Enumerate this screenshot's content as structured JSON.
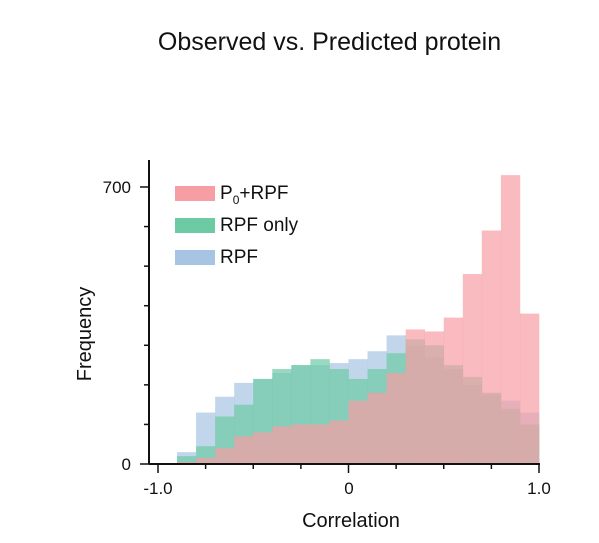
{
  "chart_data": {
    "type": "bar",
    "title": "Observed vs. Predicted protein",
    "xlabel": "Correlation",
    "ylabel": "Frequency",
    "xlim": [
      -1.0,
      1.0
    ],
    "ylim": [
      0,
      700
    ],
    "x_ticks": [
      "-1.0",
      "0",
      "1.0"
    ],
    "y_ticks": [
      "0",
      "700"
    ],
    "bin_width": 0.1,
    "bin_starts": [
      -0.9,
      -0.8,
      -0.7,
      -0.6,
      -0.5,
      -0.4,
      -0.3,
      -0.2,
      -0.1,
      0.0,
      0.1,
      0.2,
      0.3,
      0.4,
      0.5,
      0.6,
      0.7,
      0.8,
      0.9
    ],
    "legend_position": "top-left",
    "series": [
      {
        "name": "RPF",
        "color": "#a7c4e2",
        "values": [
          30,
          130,
          170,
          205,
          215,
          230,
          250,
          250,
          255,
          265,
          285,
          325,
          300,
          270,
          240,
          200,
          175,
          160,
          130
        ]
      },
      {
        "name": "RPF only",
        "color": "#6ccba5",
        "values": [
          20,
          45,
          120,
          150,
          215,
          240,
          250,
          265,
          240,
          215,
          240,
          280,
          315,
          300,
          250,
          220,
          180,
          140,
          100
        ]
      },
      {
        "name": "P0+RPF",
        "color": "#f79ea4",
        "values": [
          5,
          15,
          40,
          70,
          80,
          95,
          100,
          100,
          110,
          160,
          180,
          230,
          340,
          335,
          370,
          480,
          590,
          730,
          380
        ]
      }
    ]
  }
}
